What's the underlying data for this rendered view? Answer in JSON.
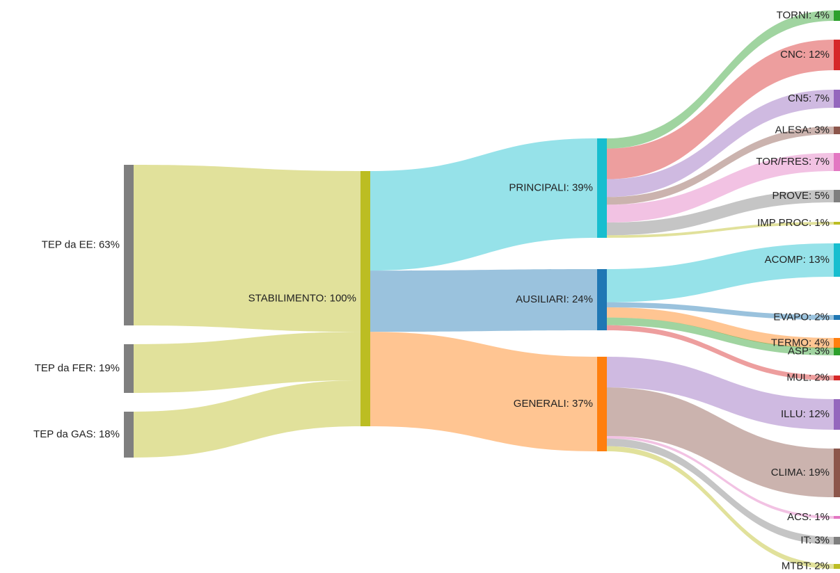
{
  "nodes": [
    {
      "id": "ee",
      "label": "TEP da EE: 63%",
      "value": 63,
      "color": "#7f7f7f"
    },
    {
      "id": "fer",
      "label": "TEP da FER: 19%",
      "value": 19,
      "color": "#7f7f7f"
    },
    {
      "id": "gas",
      "label": "TEP da GAS: 18%",
      "value": 18,
      "color": "#7f7f7f"
    },
    {
      "id": "stab",
      "label": "STABILIMENTO: 100%",
      "value": 100,
      "color": "#bcbd22"
    },
    {
      "id": "princ",
      "label": "PRINCIPALI: 39%",
      "value": 39,
      "color": "#17becf"
    },
    {
      "id": "aus",
      "label": "AUSILIARI: 24%",
      "value": 24,
      "color": "#1f77b4"
    },
    {
      "id": "gen",
      "label": "GENERALI: 37%",
      "value": 37,
      "color": "#ff7f0e"
    },
    {
      "id": "torni",
      "label": "TORNI: 4%",
      "value": 4,
      "color": "#2ca02c"
    },
    {
      "id": "cnc",
      "label": "CNC: 12%",
      "value": 12,
      "color": "#d62728"
    },
    {
      "id": "cn5",
      "label": "CN5: 7%",
      "value": 7,
      "color": "#9467bd"
    },
    {
      "id": "alesa",
      "label": "ALESA: 3%",
      "value": 3,
      "color": "#8c564b"
    },
    {
      "id": "torfres",
      "label": "TOR/FRES: 7%",
      "value": 7,
      "color": "#e377c2"
    },
    {
      "id": "prove",
      "label": "PROVE: 5%",
      "value": 5,
      "color": "#7f7f7f"
    },
    {
      "id": "impproc",
      "label": "IMP PROC: 1%",
      "value": 1,
      "color": "#bcbd22"
    },
    {
      "id": "acomp",
      "label": "ACOMP: 13%",
      "value": 13,
      "color": "#17becf"
    },
    {
      "id": "evapo",
      "label": "EVAPO: 2%",
      "value": 2,
      "color": "#1f77b4"
    },
    {
      "id": "termo",
      "label": "TERMO: 4%",
      "value": 4,
      "color": "#ff7f0e"
    },
    {
      "id": "asp",
      "label": "ASP: 3%",
      "value": 3,
      "color": "#2ca02c"
    },
    {
      "id": "mul",
      "label": "MUL: 2%",
      "value": 2,
      "color": "#d62728"
    },
    {
      "id": "illu",
      "label": "ILLU: 12%",
      "value": 12,
      "color": "#9467bd"
    },
    {
      "id": "clima",
      "label": "CLIMA: 19%",
      "value": 19,
      "color": "#8c564b"
    },
    {
      "id": "acs",
      "label": "ACS: 1%",
      "value": 1,
      "color": "#e377c2"
    },
    {
      "id": "it",
      "label": "IT: 3%",
      "value": 3,
      "color": "#7f7f7f"
    },
    {
      "id": "mtbt",
      "label": "MTBT: 2%",
      "value": 2,
      "color": "#bcbd22"
    }
  ],
  "links": [
    {
      "source": "ee",
      "target": "stab",
      "value": 63
    },
    {
      "source": "fer",
      "target": "stab",
      "value": 19
    },
    {
      "source": "gas",
      "target": "stab",
      "value": 18
    },
    {
      "source": "stab",
      "target": "princ",
      "value": 39
    },
    {
      "source": "stab",
      "target": "aus",
      "value": 24
    },
    {
      "source": "stab",
      "target": "gen",
      "value": 37
    },
    {
      "source": "princ",
      "target": "torni",
      "value": 4
    },
    {
      "source": "princ",
      "target": "cnc",
      "value": 12
    },
    {
      "source": "princ",
      "target": "cn5",
      "value": 7
    },
    {
      "source": "princ",
      "target": "alesa",
      "value": 3
    },
    {
      "source": "princ",
      "target": "torfres",
      "value": 7
    },
    {
      "source": "princ",
      "target": "prove",
      "value": 5
    },
    {
      "source": "princ",
      "target": "impproc",
      "value": 1
    },
    {
      "source": "aus",
      "target": "acomp",
      "value": 13
    },
    {
      "source": "aus",
      "target": "evapo",
      "value": 2
    },
    {
      "source": "aus",
      "target": "termo",
      "value": 4
    },
    {
      "source": "aus",
      "target": "asp",
      "value": 3
    },
    {
      "source": "aus",
      "target": "mul",
      "value": 2
    },
    {
      "source": "gen",
      "target": "illu",
      "value": 12
    },
    {
      "source": "gen",
      "target": "clima",
      "value": 19
    },
    {
      "source": "gen",
      "target": "acs",
      "value": 1
    },
    {
      "source": "gen",
      "target": "it",
      "value": 3
    },
    {
      "source": "gen",
      "target": "mtbt",
      "value": 2
    }
  ]
}
